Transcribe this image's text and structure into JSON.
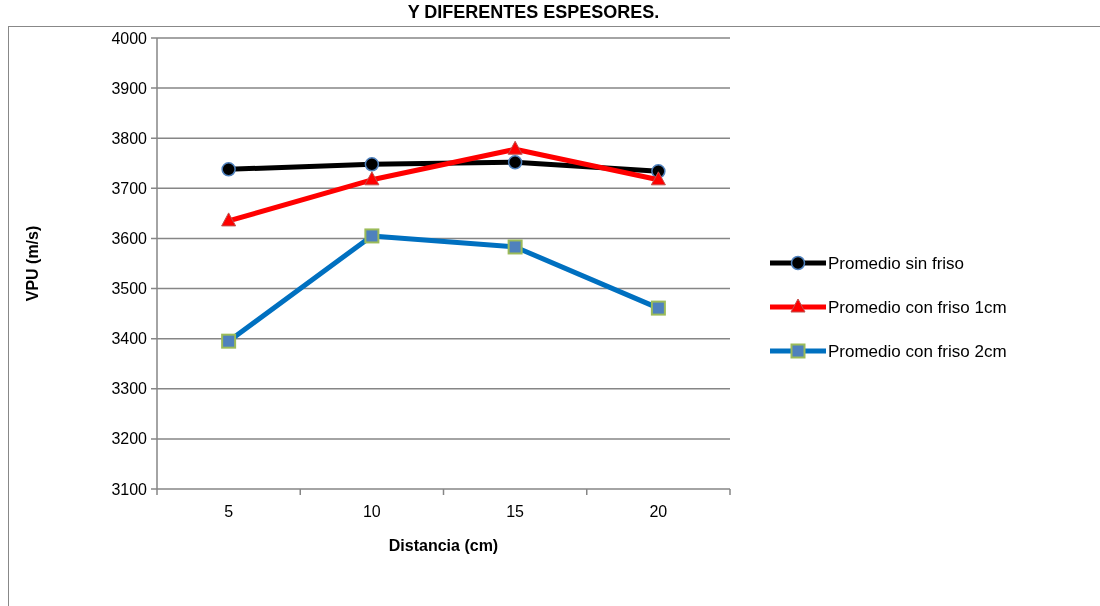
{
  "chart_data": {
    "type": "line",
    "title": "Y DIFERENTES ESPESORES.",
    "xlabel": "Distancia (cm)",
    "ylabel": "VPU (m/s)",
    "categories": [
      "5",
      "10",
      "15",
      "20"
    ],
    "series": [
      {
        "name": "Promedio sin friso",
        "color": "#000000",
        "marker": "circle",
        "values": [
          3738,
          3748,
          3752,
          3734
        ]
      },
      {
        "name": "Promedio con friso 1cm",
        "color": "#ff0000",
        "marker": "triangle",
        "values": [
          3635,
          3717,
          3778,
          3717
        ]
      },
      {
        "name": "Promedio con friso 2cm",
        "color": "#0070c0",
        "marker": "square",
        "values": [
          3395,
          3605,
          3583,
          3461
        ]
      }
    ],
    "ylim": [
      3100,
      4000
    ],
    "yticks": [
      3100,
      3200,
      3300,
      3400,
      3500,
      3600,
      3700,
      3800,
      3900,
      4000
    ],
    "grid": "y",
    "legend": "right"
  }
}
